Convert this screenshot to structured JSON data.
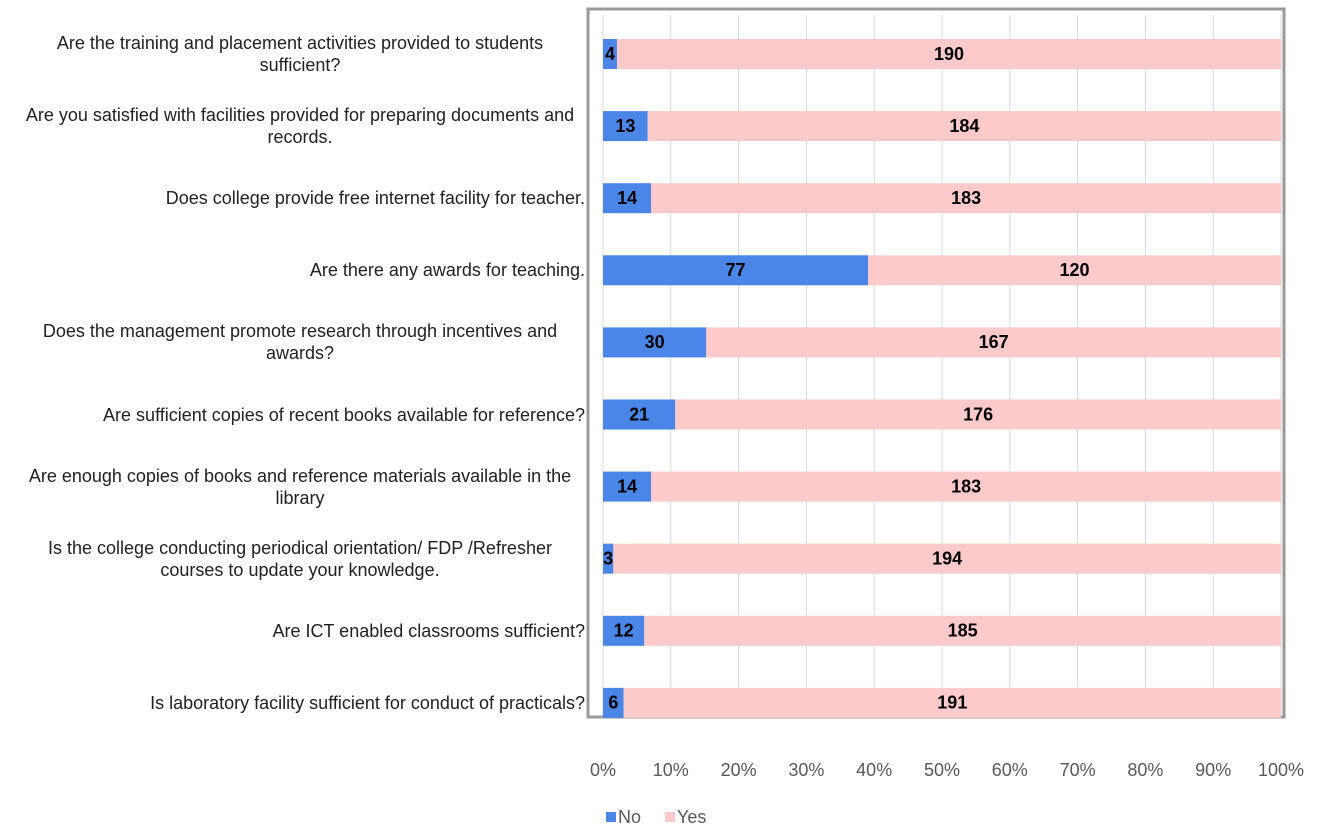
{
  "chart_data": {
    "type": "bar",
    "orientation": "horizontal",
    "stacked": true,
    "normalize": true,
    "categories": [
      "Are the training and placement activities provided to students sufficient?",
      "Are you satisfied with facilities provided for preparing documents and records.",
      "Does college provide free internet facility for teacher.",
      "Are there any awards for teaching.",
      "Does the management promote research through incentives and awards?",
      "Are sufficient copies of recent books available for reference?",
      "Are enough copies of books and reference materials available in the library",
      "Is the college conducting periodical orientation/ FDP /Refresher courses to update your knowledge.",
      "Are ICT enabled classrooms sufficient?",
      "Is laboratory facility sufficient for conduct of practicals?"
    ],
    "series": [
      {
        "name": "No",
        "color": "#4a86e8",
        "values": [
          4,
          13,
          14,
          77,
          30,
          21,
          14,
          3,
          12,
          6
        ]
      },
      {
        "name": "Yes",
        "color": "#fccaca",
        "values": [
          190,
          184,
          183,
          120,
          167,
          176,
          183,
          194,
          185,
          191
        ]
      }
    ],
    "xlim": [
      0,
      100
    ],
    "xticks": [
      {
        "value": 0,
        "label": "0%"
      },
      {
        "value": 10,
        "label": "10%"
      },
      {
        "value": 20,
        "label": "20%"
      },
      {
        "value": 30,
        "label": "30%"
      },
      {
        "value": 40,
        "label": "40%"
      },
      {
        "value": 50,
        "label": "50%"
      },
      {
        "value": 60,
        "label": "60%"
      },
      {
        "value": 70,
        "label": "70%"
      },
      {
        "value": 80,
        "label": "80%"
      },
      {
        "value": 90,
        "label": "90%"
      },
      {
        "value": 100,
        "label": "100%"
      }
    ],
    "grid": true,
    "legend": "bottom"
  }
}
